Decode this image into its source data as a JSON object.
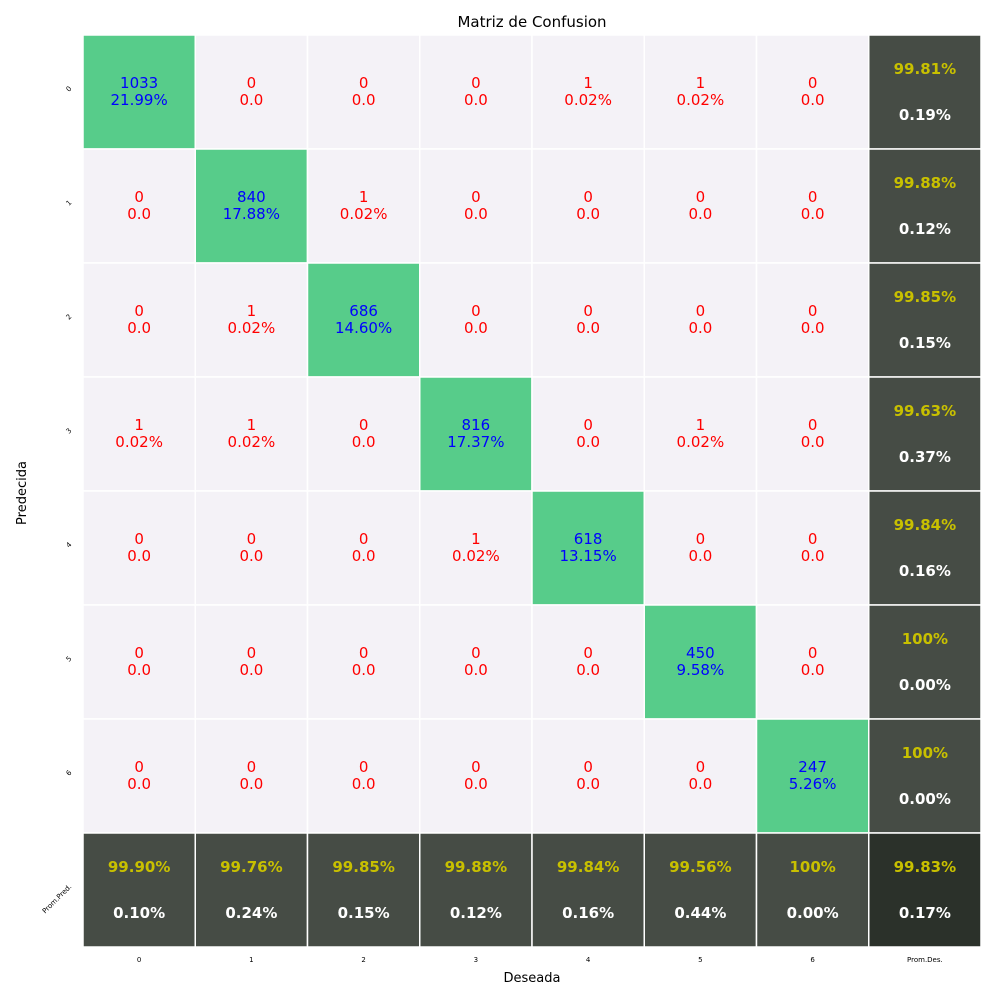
{
  "chart_data": {
    "type": "heatmap",
    "title": "Matriz de Confusion",
    "xlabel": "Deseada",
    "ylabel": "Predecida",
    "x_tick_labels": [
      "0",
      "1",
      "2",
      "3",
      "4",
      "5",
      "6",
      "Prom.Des."
    ],
    "y_tick_labels": [
      "0",
      "1",
      "2",
      "3",
      "4",
      "5",
      "6",
      "Prom.Pred."
    ],
    "counts": [
      [
        1033,
        0,
        0,
        0,
        1,
        1,
        0
      ],
      [
        0,
        840,
        1,
        0,
        0,
        0,
        0
      ],
      [
        0,
        1,
        686,
        0,
        0,
        0,
        0
      ],
      [
        1,
        1,
        0,
        816,
        0,
        1,
        0
      ],
      [
        0,
        0,
        0,
        1,
        618,
        0,
        0
      ],
      [
        0,
        0,
        0,
        0,
        0,
        450,
        0
      ],
      [
        0,
        0,
        0,
        0,
        0,
        0,
        247
      ]
    ],
    "percents": [
      [
        "21.99%",
        "0.0",
        "0.0",
        "0.0",
        "0.02%",
        "0.02%",
        "0.0"
      ],
      [
        "0.0",
        "17.88%",
        "0.02%",
        "0.0",
        "0.0",
        "0.0",
        "0.0"
      ],
      [
        "0.0",
        "0.02%",
        "14.60%",
        "0.0",
        "0.0",
        "0.0",
        "0.0"
      ],
      [
        "0.02%",
        "0.02%",
        "0.0",
        "17.37%",
        "0.0",
        "0.02%",
        "0.0"
      ],
      [
        "0.0",
        "0.0",
        "0.0",
        "0.02%",
        "13.15%",
        "0.0",
        "0.0"
      ],
      [
        "0.0",
        "0.0",
        "0.0",
        "0.0",
        "0.0",
        "9.58%",
        "0.0"
      ],
      [
        "0.0",
        "0.0",
        "0.0",
        "0.0",
        "0.0",
        "0.0",
        "5.26%"
      ]
    ],
    "row_summary": [
      {
        "accuracy": "99.81%",
        "error": "0.19%"
      },
      {
        "accuracy": "99.88%",
        "error": "0.12%"
      },
      {
        "accuracy": "99.85%",
        "error": "0.15%"
      },
      {
        "accuracy": "99.63%",
        "error": "0.37%"
      },
      {
        "accuracy": "99.84%",
        "error": "0.16%"
      },
      {
        "accuracy": "100%",
        "error": "0.00%"
      },
      {
        "accuracy": "100%",
        "error": "0.00%"
      }
    ],
    "col_summary": [
      {
        "accuracy": "99.90%",
        "error": "0.10%"
      },
      {
        "accuracy": "99.76%",
        "error": "0.24%"
      },
      {
        "accuracy": "99.85%",
        "error": "0.15%"
      },
      {
        "accuracy": "99.88%",
        "error": "0.12%"
      },
      {
        "accuracy": "99.84%",
        "error": "0.16%"
      },
      {
        "accuracy": "99.56%",
        "error": "0.44%"
      },
      {
        "accuracy": "100%",
        "error": "0.00%"
      }
    ],
    "total_summary": {
      "accuracy": "99.83%",
      "error": "0.17%"
    },
    "colors": {
      "diagonal_cell": "#57cc8a",
      "off_diagonal_cell": "#f4f2f7",
      "summary_cell": "#464c45",
      "total_cell": "#2b312a",
      "diagonal_text": "#0000ff",
      "off_diagonal_text": "#ff0000",
      "accuracy_text": "#c8c000",
      "error_text": "#ffffff",
      "grid_line": "#ffffff"
    }
  }
}
